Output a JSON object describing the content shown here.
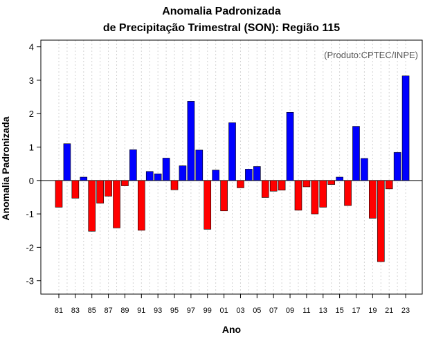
{
  "chart_data": {
    "type": "bar",
    "title": "Anomalia Padronizada",
    "subtitle": "de Precipitação Trimestral (SON): Região 115",
    "annotation": "(Produto:CPTEC/INPE)",
    "xlabel": "Ano",
    "ylabel": "Anomalia Padronizada",
    "ylim": [
      -3.4,
      4.2
    ],
    "y_ticks": [
      -3,
      -2,
      -1,
      0,
      1,
      2,
      3,
      4
    ],
    "grid": true,
    "x_tick_labels": [
      "81",
      "83",
      "85",
      "87",
      "89",
      "91",
      "93",
      "95",
      "97",
      "99",
      "01",
      "03",
      "05",
      "07",
      "09",
      "11",
      "13",
      "15",
      "17",
      "19",
      "21",
      "23"
    ],
    "categories": [
      "1981",
      "1982",
      "1983",
      "1984",
      "1985",
      "1986",
      "1987",
      "1988",
      "1989",
      "1990",
      "1991",
      "1992",
      "1993",
      "1994",
      "1995",
      "1996",
      "1997",
      "1998",
      "1999",
      "2000",
      "2001",
      "2002",
      "2003",
      "2004",
      "2005",
      "2006",
      "2007",
      "2008",
      "2009",
      "2010",
      "2011",
      "2012",
      "2013",
      "2014",
      "2015",
      "2016",
      "2017",
      "2018",
      "2019",
      "2020",
      "2021",
      "2022",
      "2023"
    ],
    "values": [
      -0.8,
      1.1,
      -0.53,
      0.1,
      -1.52,
      -0.68,
      -0.47,
      -1.42,
      -0.16,
      0.92,
      -1.49,
      0.27,
      0.2,
      0.67,
      -0.28,
      0.44,
      2.37,
      0.91,
      -1.46,
      0.31,
      -0.91,
      1.73,
      -0.22,
      0.34,
      0.42,
      -0.51,
      -0.32,
      -0.29,
      2.04,
      -0.89,
      -0.19,
      -1.0,
      -0.8,
      -0.12,
      0.1,
      -0.75,
      1.62,
      0.66,
      -1.13,
      -2.43,
      -0.25,
      0.84,
      3.13
    ],
    "colors": {
      "positive": "#0000ff",
      "negative": "#ff0000",
      "outline": "#000000",
      "grid": "#d3d3d3"
    }
  }
}
